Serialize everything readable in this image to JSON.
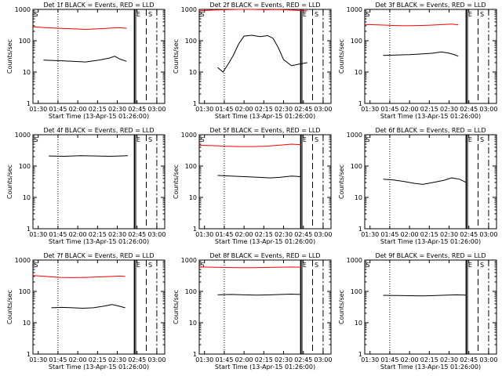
{
  "start_label": "Start Time (13-Apr-15 01:26:00)",
  "ylabel": "Counts/sec",
  "x_ticks": [
    "01:30",
    "01:45",
    "02:00",
    "02:15",
    "02:30",
    "02:45",
    "03:00"
  ],
  "y_ticks": [
    "1",
    "10",
    "100",
    "1000"
  ],
  "colors": {
    "events": "#000000",
    "lld": "#ff0000"
  },
  "chart_data": [
    {
      "type": "line",
      "title": "Det 1f BLACK = Events, RED = LLD",
      "xlim_minutes": [
        0,
        100
      ],
      "ylim": [
        1,
        1000
      ],
      "yscale": "log",
      "markers": [
        "E",
        "S"
      ],
      "events": {
        "t_start": 8,
        "t_end": 71,
        "level": 22,
        "points": [
          [
            8,
            24
          ],
          [
            20,
            23
          ],
          [
            30,
            22
          ],
          [
            40,
            21
          ],
          [
            50,
            24
          ],
          [
            58,
            28
          ],
          [
            62,
            32
          ],
          [
            66,
            26
          ],
          [
            71,
            22
          ]
        ]
      },
      "lld": {
        "t_start": 0,
        "t_end": 71,
        "level": 260,
        "points": [
          [
            0,
            280
          ],
          [
            10,
            260
          ],
          [
            20,
            250
          ],
          [
            30,
            240
          ],
          [
            40,
            230
          ],
          [
            50,
            240
          ],
          [
            60,
            255
          ],
          [
            66,
            260
          ],
          [
            71,
            250
          ]
        ]
      }
    },
    {
      "type": "line",
      "title": "Det 2f BLACK = Events, RED = LLD",
      "xlim_minutes": [
        0,
        100
      ],
      "ylim": [
        1,
        1000
      ],
      "yscale": "log",
      "markers": [
        "E",
        "S"
      ],
      "events": {
        "t_start": 14,
        "t_end": 82,
        "level": 20,
        "points": [
          [
            14,
            14
          ],
          [
            18,
            10
          ],
          [
            22,
            18
          ],
          [
            26,
            35
          ],
          [
            30,
            80
          ],
          [
            34,
            140
          ],
          [
            40,
            150
          ],
          [
            46,
            135
          ],
          [
            52,
            145
          ],
          [
            56,
            120
          ],
          [
            60,
            60
          ],
          [
            64,
            25
          ],
          [
            70,
            16
          ],
          [
            76,
            18
          ],
          [
            82,
            20
          ]
        ]
      },
      "lld": {
        "t_start": 0,
        "t_end": 82,
        "level": 900,
        "points": [
          [
            0,
            900
          ],
          [
            10,
            950
          ],
          [
            20,
            980
          ],
          [
            30,
            1000
          ],
          [
            40,
            1000
          ],
          [
            50,
            980
          ],
          [
            60,
            990
          ],
          [
            70,
            950
          ],
          [
            82,
            900
          ]
        ]
      }
    },
    {
      "type": "line",
      "title": "Det 3f BLACK = Events, RED = LLD",
      "xlim_minutes": [
        0,
        100
      ],
      "ylim": [
        1,
        1000
      ],
      "yscale": "log",
      "markers": [
        "E",
        "S"
      ],
      "events": {
        "t_start": 14,
        "t_end": 71,
        "level": 35,
        "points": [
          [
            14,
            34
          ],
          [
            24,
            35
          ],
          [
            34,
            36
          ],
          [
            44,
            38
          ],
          [
            52,
            40
          ],
          [
            58,
            44
          ],
          [
            64,
            40
          ],
          [
            68,
            36
          ],
          [
            71,
            32
          ]
        ]
      },
      "lld": {
        "t_start": 0,
        "t_end": 71,
        "level": 320,
        "points": [
          [
            0,
            330
          ],
          [
            10,
            320
          ],
          [
            20,
            310
          ],
          [
            30,
            300
          ],
          [
            40,
            305
          ],
          [
            50,
            315
          ],
          [
            60,
            330
          ],
          [
            66,
            340
          ],
          [
            71,
            320
          ]
        ]
      }
    },
    {
      "type": "line",
      "title": "Det 4f BLACK = Events, RED = LLD",
      "xlim_minutes": [
        0,
        100
      ],
      "ylim": [
        1,
        1000
      ],
      "yscale": "log",
      "markers": [
        "E",
        "S"
      ],
      "events": {
        "t_start": 12,
        "t_end": 72,
        "level": 210,
        "points": [
          [
            12,
            210
          ],
          [
            24,
            205
          ],
          [
            36,
            215
          ],
          [
            48,
            210
          ],
          [
            58,
            205
          ],
          [
            66,
            210
          ],
          [
            72,
            215
          ]
        ]
      }
    },
    {
      "type": "line",
      "title": "Det 5f BLACK = Events, RED = LLD",
      "xlim_minutes": [
        0,
        100
      ],
      "ylim": [
        1,
        1000
      ],
      "yscale": "log",
      "markers": [
        "E",
        "S"
      ],
      "events": {
        "t_start": 14,
        "t_end": 77,
        "level": 45,
        "points": [
          [
            14,
            50
          ],
          [
            24,
            48
          ],
          [
            34,
            46
          ],
          [
            44,
            44
          ],
          [
            54,
            42
          ],
          [
            62,
            44
          ],
          [
            70,
            48
          ],
          [
            77,
            46
          ]
        ]
      },
      "lld": {
        "t_start": 0,
        "t_end": 77,
        "level": 450,
        "points": [
          [
            0,
            460
          ],
          [
            10,
            450
          ],
          [
            20,
            430
          ],
          [
            30,
            420
          ],
          [
            40,
            420
          ],
          [
            50,
            430
          ],
          [
            60,
            460
          ],
          [
            70,
            500
          ],
          [
            77,
            480
          ]
        ]
      }
    },
    {
      "type": "line",
      "title": "Det 6f BLACK = Events, RED = LLD",
      "xlim_minutes": [
        0,
        100
      ],
      "ylim": [
        1,
        1000
      ],
      "yscale": "log",
      "markers": [
        "E",
        "S"
      ],
      "events": {
        "t_start": 14,
        "t_end": 77,
        "level": 35,
        "points": [
          [
            14,
            38
          ],
          [
            22,
            36
          ],
          [
            30,
            32
          ],
          [
            38,
            28
          ],
          [
            44,
            26
          ],
          [
            52,
            30
          ],
          [
            60,
            35
          ],
          [
            66,
            42
          ],
          [
            72,
            38
          ],
          [
            77,
            30
          ]
        ]
      }
    },
    {
      "type": "line",
      "title": "Det 7f BLACK = Events, RED = LLD",
      "xlim_minutes": [
        0,
        100
      ],
      "ylim": [
        1,
        1000
      ],
      "yscale": "log",
      "markers": [
        "E",
        "S"
      ],
      "events": {
        "t_start": 14,
        "t_end": 70,
        "level": 32,
        "points": [
          [
            14,
            30
          ],
          [
            22,
            31
          ],
          [
            30,
            30
          ],
          [
            38,
            29
          ],
          [
            46,
            30
          ],
          [
            54,
            34
          ],
          [
            60,
            38
          ],
          [
            64,
            35
          ],
          [
            70,
            30
          ]
        ]
      },
      "lld": {
        "t_start": 0,
        "t_end": 70,
        "level": 300,
        "points": [
          [
            0,
            320
          ],
          [
            10,
            300
          ],
          [
            20,
            280
          ],
          [
            30,
            275
          ],
          [
            40,
            280
          ],
          [
            50,
            290
          ],
          [
            60,
            300
          ],
          [
            66,
            310
          ],
          [
            70,
            300
          ]
        ]
      }
    },
    {
      "type": "line",
      "title": "Det 8f BLACK = Events, RED = LLD",
      "xlim_minutes": [
        0,
        100
      ],
      "ylim": [
        1,
        1000
      ],
      "yscale": "log",
      "markers": [
        "E",
        "S"
      ],
      "events": {
        "t_start": 14,
        "t_end": 77,
        "level": 80,
        "points": [
          [
            14,
            78
          ],
          [
            24,
            80
          ],
          [
            34,
            78
          ],
          [
            44,
            76
          ],
          [
            54,
            78
          ],
          [
            62,
            80
          ],
          [
            70,
            82
          ],
          [
            77,
            80
          ]
        ]
      },
      "lld": {
        "t_start": 0,
        "t_end": 77,
        "level": 580,
        "points": [
          [
            0,
            600
          ],
          [
            10,
            590
          ],
          [
            20,
            580
          ],
          [
            30,
            570
          ],
          [
            40,
            570
          ],
          [
            50,
            580
          ],
          [
            60,
            590
          ],
          [
            70,
            600
          ],
          [
            77,
            590
          ]
        ]
      }
    },
    {
      "type": "line",
      "title": "Det 9f BLACK = Events, RED = LLD",
      "xlim_minutes": [
        0,
        100
      ],
      "ylim": [
        1,
        1000
      ],
      "yscale": "log",
      "markers": [
        "E",
        "S"
      ],
      "events": {
        "t_start": 14,
        "t_end": 77,
        "level": 75,
        "points": [
          [
            14,
            75
          ],
          [
            24,
            74
          ],
          [
            34,
            73
          ],
          [
            44,
            72
          ],
          [
            54,
            74
          ],
          [
            62,
            76
          ],
          [
            70,
            78
          ],
          [
            77,
            76
          ]
        ]
      }
    }
  ]
}
